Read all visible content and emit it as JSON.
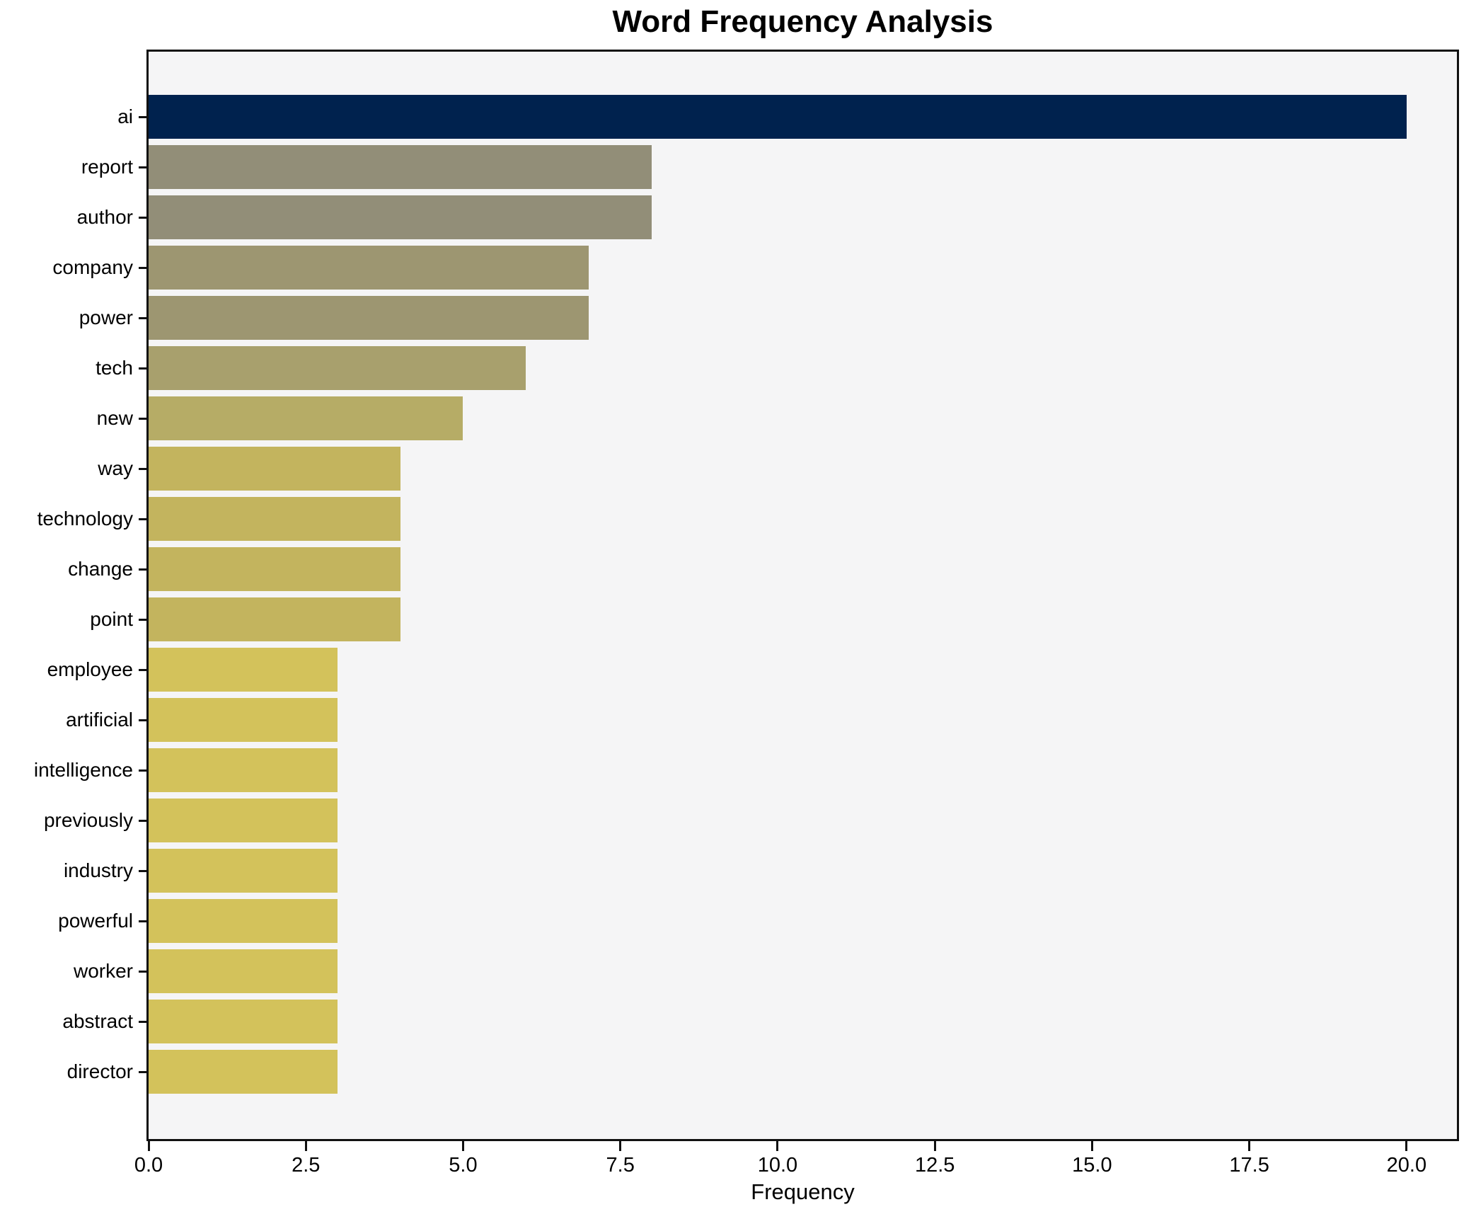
{
  "chart_data": {
    "type": "bar",
    "orientation": "horizontal",
    "title": "Word Frequency Analysis",
    "xlabel": "Frequency",
    "ylabel": "",
    "categories": [
      "ai",
      "report",
      "author",
      "company",
      "power",
      "tech",
      "new",
      "way",
      "technology",
      "change",
      "point",
      "employee",
      "artificial",
      "intelligence",
      "previously",
      "industry",
      "powerful",
      "worker",
      "abstract",
      "director"
    ],
    "values": [
      20,
      8,
      8,
      7,
      7,
      6,
      5,
      4,
      4,
      4,
      4,
      3,
      3,
      3,
      3,
      3,
      3,
      3,
      3,
      3
    ],
    "bar_colors": [
      "#00224e",
      "#928e78",
      "#928e78",
      "#9d9671",
      "#9d9671",
      "#a8a06d",
      "#b6ac66",
      "#c3b45e",
      "#c3b45e",
      "#c3b45e",
      "#c3b45e",
      "#d3c25b",
      "#d3c25b",
      "#d3c25b",
      "#d3c25b",
      "#d3c25b",
      "#d3c25b",
      "#d3c25b",
      "#d3c25b",
      "#d3c25b"
    ],
    "xticks": [
      "0.0",
      "2.5",
      "5.0",
      "7.5",
      "10.0",
      "12.5",
      "15.0",
      "17.5",
      "20.0"
    ],
    "xlim": [
      0,
      20.8
    ],
    "grid": false,
    "plot_background": "#f5f5f6",
    "figure_background": "#ffffff"
  }
}
